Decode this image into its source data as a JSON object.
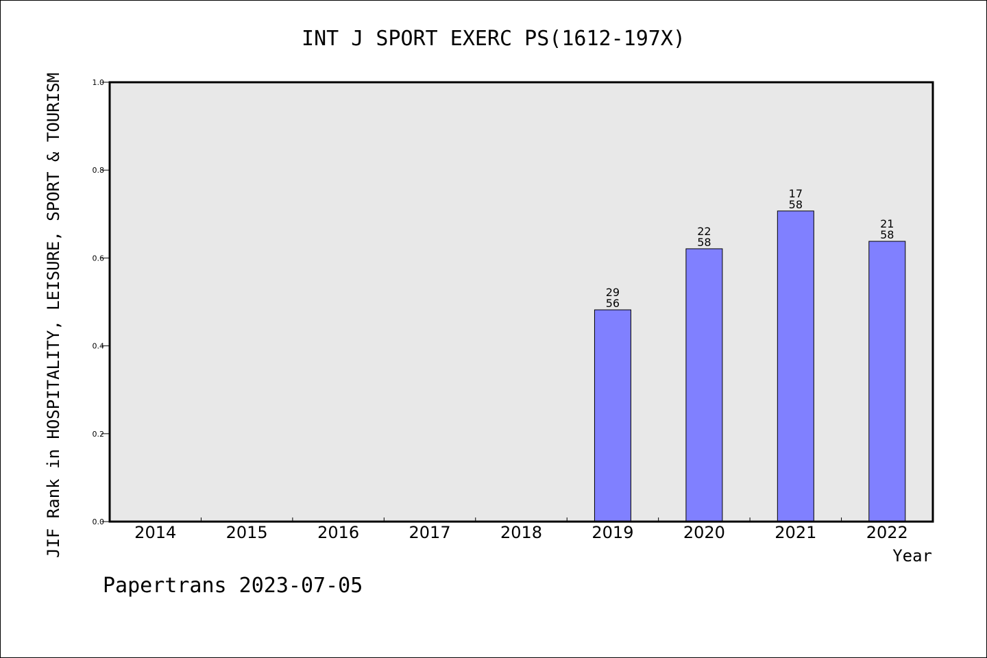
{
  "chart_data": {
    "type": "bar",
    "title": "INT J SPORT EXERC PS(1612-197X)",
    "ylabel": "JIF Rank in HOSPITALITY, LEISURE, SPORT & TOURISM",
    "xlabel": "Year",
    "ylim": [
      0,
      1
    ],
    "yticks": [
      "0.0",
      "0.2",
      "0.4",
      "0.6",
      "0.8",
      "1.0"
    ],
    "categories": [
      "2014",
      "2015",
      "2016",
      "2017",
      "2018",
      "2019",
      "2020",
      "2021",
      "2022"
    ],
    "values": [
      null,
      null,
      null,
      null,
      null,
      0.482,
      0.621,
      0.707,
      0.638
    ],
    "bar_labels": [
      null,
      null,
      null,
      null,
      null,
      {
        "rank": "29",
        "total": "56"
      },
      {
        "rank": "22",
        "total": "58"
      },
      {
        "rank": "17",
        "total": "58"
      },
      {
        "rank": "21",
        "total": "58"
      }
    ],
    "bar_color": "#8080ff",
    "plot_background": "#e8e8e8",
    "grid": false
  },
  "footer": "Papertrans 2023-07-05"
}
